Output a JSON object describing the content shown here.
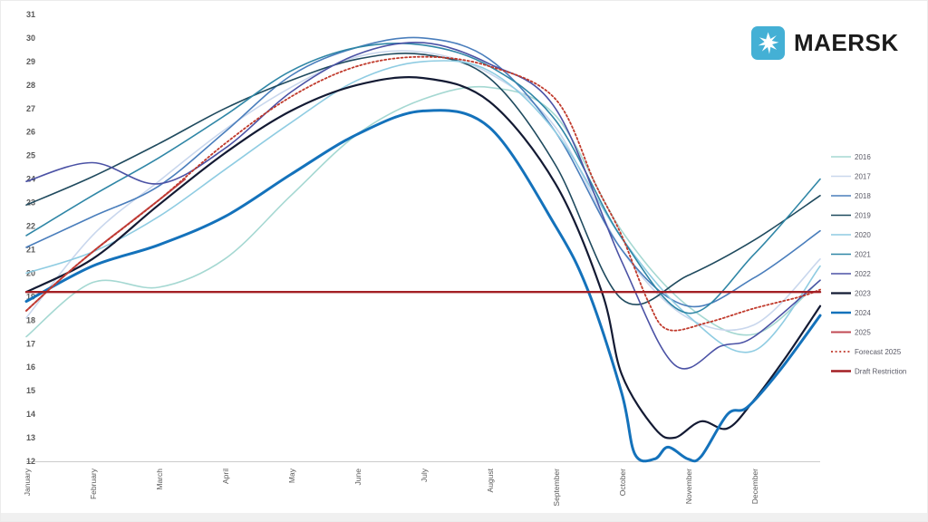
{
  "logo": {
    "text": "MAERSK",
    "brand_color": "#44b0d5"
  },
  "chart_data": {
    "type": "line",
    "title": "",
    "xlabel": "",
    "ylabel": "",
    "ylim": [
      12,
      31
    ],
    "y_ticks": [
      12,
      13,
      14,
      15,
      16,
      17,
      18,
      19,
      20,
      21,
      22,
      23,
      24,
      25,
      26,
      27,
      28,
      29,
      30,
      31
    ],
    "x_categories": [
      "January",
      "February",
      "March",
      "April",
      "May",
      "June",
      "July",
      "August",
      "September",
      "October",
      "November",
      "December"
    ],
    "grid": false,
    "legend_position": "right",
    "axis_text_color": "#595959",
    "series": [
      {
        "name": "2016",
        "color": "#a5d8d2",
        "width": 1.6,
        "dash": null,
        "points": [
          [
            0,
            17.3
          ],
          [
            1,
            19.6
          ],
          [
            2,
            19.4
          ],
          [
            3,
            20.6
          ],
          [
            4,
            23.3
          ],
          [
            5,
            25.9
          ],
          [
            6,
            27.4
          ],
          [
            7,
            27.9
          ],
          [
            8,
            26.7
          ],
          [
            9,
            21.8
          ],
          [
            10,
            18.6
          ],
          [
            11,
            17.4
          ],
          [
            12,
            19.7
          ]
        ]
      },
      {
        "name": "2017",
        "color": "#c9d7ed",
        "width": 1.6,
        "dash": null,
        "points": [
          [
            0,
            18.1
          ],
          [
            1,
            21.6
          ],
          [
            2,
            23.9
          ],
          [
            3,
            26.1
          ],
          [
            4,
            27.9
          ],
          [
            5,
            29.2
          ],
          [
            6,
            29.4
          ],
          [
            7,
            28.5
          ],
          [
            8,
            26.2
          ],
          [
            9,
            21.0
          ],
          [
            10,
            18.1
          ],
          [
            11,
            17.8
          ],
          [
            12,
            20.6
          ]
        ]
      },
      {
        "name": "2018",
        "color": "#4a7ebc",
        "width": 1.6,
        "dash": null,
        "points": [
          [
            0,
            21.1
          ],
          [
            1,
            22.4
          ],
          [
            2,
            23.7
          ],
          [
            3,
            26.0
          ],
          [
            4,
            28.4
          ],
          [
            5,
            29.6
          ],
          [
            6,
            30.0
          ],
          [
            7,
            29.1
          ],
          [
            8,
            26.0
          ],
          [
            9,
            21.0
          ],
          [
            10,
            18.6
          ],
          [
            11,
            19.8
          ],
          [
            12,
            21.8
          ]
        ]
      },
      {
        "name": "2019",
        "color": "#1f4a5e",
        "width": 1.6,
        "dash": null,
        "points": [
          [
            0,
            22.9
          ],
          [
            1,
            24.1
          ],
          [
            2,
            25.5
          ],
          [
            3,
            27.0
          ],
          [
            4,
            28.2
          ],
          [
            5,
            29.1
          ],
          [
            6,
            29.3
          ],
          [
            7,
            28.3
          ],
          [
            8,
            24.6
          ],
          [
            9,
            18.9
          ],
          [
            10,
            19.9
          ],
          [
            11,
            21.4
          ],
          [
            12,
            23.3
          ]
        ]
      },
      {
        "name": "2020",
        "color": "#8fcce2",
        "width": 1.6,
        "dash": null,
        "points": [
          [
            0,
            20.0
          ],
          [
            1,
            20.9
          ],
          [
            2,
            22.4
          ],
          [
            3,
            24.4
          ],
          [
            4,
            26.4
          ],
          [
            5,
            28.2
          ],
          [
            6,
            29.0
          ],
          [
            7,
            28.6
          ],
          [
            8,
            26.0
          ],
          [
            9,
            21.5
          ],
          [
            10,
            18.2
          ],
          [
            11,
            16.7
          ],
          [
            12,
            20.3
          ]
        ]
      },
      {
        "name": "2021",
        "color": "#2f86a6",
        "width": 1.6,
        "dash": null,
        "points": [
          [
            0,
            21.6
          ],
          [
            1,
            23.3
          ],
          [
            2,
            24.9
          ],
          [
            3,
            26.7
          ],
          [
            4,
            28.6
          ],
          [
            5,
            29.6
          ],
          [
            6,
            29.7
          ],
          [
            7,
            28.8
          ],
          [
            8,
            26.5
          ],
          [
            9,
            21.5
          ],
          [
            10,
            18.3
          ],
          [
            11,
            20.8
          ],
          [
            12,
            24.0
          ]
        ]
      },
      {
        "name": "2022",
        "color": "#4b52a5",
        "width": 1.6,
        "dash": null,
        "points": [
          [
            0,
            23.9
          ],
          [
            1,
            24.7
          ],
          [
            2,
            23.8
          ],
          [
            3,
            25.3
          ],
          [
            4,
            27.7
          ],
          [
            5,
            29.3
          ],
          [
            6,
            29.8
          ],
          [
            7,
            28.9
          ],
          [
            8,
            27.0
          ],
          [
            9,
            20.5
          ],
          [
            9.8,
            16.1
          ],
          [
            10.5,
            16.9
          ],
          [
            11,
            17.3
          ],
          [
            12,
            19.7
          ]
        ]
      },
      {
        "name": "2023",
        "color": "#131a33",
        "width": 2.2,
        "dash": null,
        "points": [
          [
            0,
            19.2
          ],
          [
            1,
            20.6
          ],
          [
            2,
            22.9
          ],
          [
            3,
            25.1
          ],
          [
            4,
            26.9
          ],
          [
            5,
            28.0
          ],
          [
            6,
            28.3
          ],
          [
            7,
            27.3
          ],
          [
            8,
            23.8
          ],
          [
            8.7,
            19.2
          ],
          [
            9,
            15.7
          ],
          [
            9.5,
            13.4
          ],
          [
            9.8,
            13.0
          ],
          [
            10.2,
            13.7
          ],
          [
            10.6,
            13.4
          ],
          [
            11,
            14.6
          ],
          [
            11.5,
            16.5
          ],
          [
            12,
            18.6
          ]
        ]
      },
      {
        "name": "2024",
        "color": "#1472bb",
        "width": 3.0,
        "dash": null,
        "points": [
          [
            0,
            18.8
          ],
          [
            1,
            20.3
          ],
          [
            2,
            21.2
          ],
          [
            3,
            22.4
          ],
          [
            4,
            24.2
          ],
          [
            5,
            25.9
          ],
          [
            6,
            26.9
          ],
          [
            7,
            26.2
          ],
          [
            8,
            22.0
          ],
          [
            8.5,
            19.2
          ],
          [
            9,
            14.9
          ],
          [
            9.2,
            12.3
          ],
          [
            9.5,
            12.1
          ],
          [
            9.7,
            12.6
          ],
          [
            10,
            12.1
          ],
          [
            10.2,
            12.2
          ],
          [
            10.6,
            14.0
          ],
          [
            10.9,
            14.3
          ],
          [
            11.4,
            15.9
          ],
          [
            12,
            18.2
          ]
        ]
      },
      {
        "name": "2025",
        "color": "#c14953",
        "width": 2.0,
        "dash": null,
        "points": [
          [
            0,
            18.4
          ],
          [
            0.5,
            19.7
          ],
          [
            1,
            20.9
          ],
          [
            1.5,
            22.0
          ],
          [
            2,
            23.1
          ],
          [
            2.4,
            24.0
          ]
        ]
      },
      {
        "name": "Forecast 2025",
        "color": "#c0392b",
        "width": 1.8,
        "dash": "2,2.6",
        "points": [
          [
            0,
            18.4
          ],
          [
            0.5,
            19.7
          ],
          [
            1,
            20.9
          ],
          [
            2,
            23.1
          ],
          [
            3,
            25.5
          ],
          [
            4,
            27.5
          ],
          [
            5,
            28.8
          ],
          [
            6,
            29.2
          ],
          [
            7,
            28.8
          ],
          [
            8,
            27.4
          ],
          [
            8.6,
            23.8
          ],
          [
            9,
            21.6
          ],
          [
            9.4,
            18.8
          ],
          [
            9.7,
            17.6
          ],
          [
            10.3,
            17.9
          ],
          [
            11,
            18.5
          ],
          [
            11.7,
            19.0
          ],
          [
            12,
            19.3
          ]
        ]
      },
      {
        "name": "Draft Restriction",
        "color": "#a31f24",
        "width": 2.4,
        "dash": null,
        "points": [
          [
            0,
            19.2
          ],
          [
            12,
            19.2
          ]
        ]
      }
    ]
  }
}
